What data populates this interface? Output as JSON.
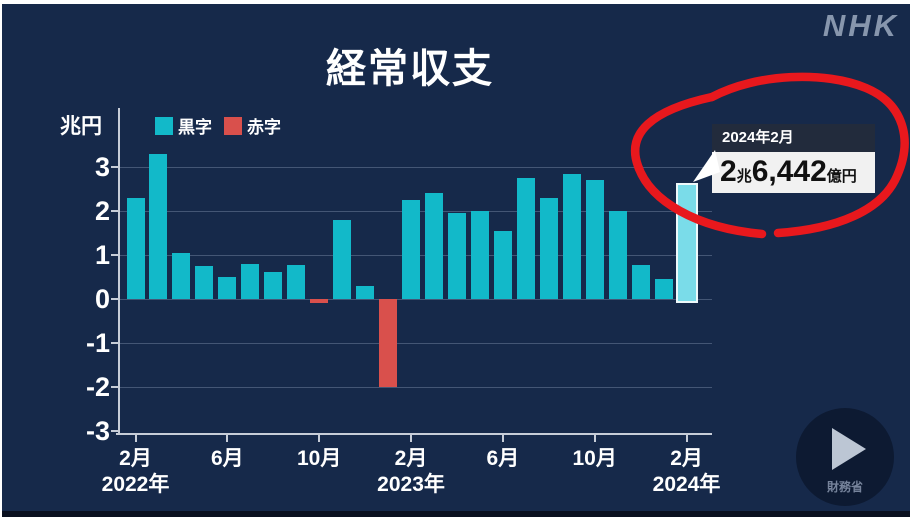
{
  "window": {
    "background": "#16294a"
  },
  "brand": {
    "logo_text": "NHK",
    "logo_color": "#8796ad"
  },
  "chart_data": {
    "type": "bar",
    "title": "経常収支",
    "y_axis_unit": "兆円",
    "legend": [
      {
        "label": "黒字",
        "color": "#12b9c9"
      },
      {
        "label": "赤字",
        "color": "#d9504c"
      }
    ],
    "legend_position": "top-left",
    "grid": "horizontal",
    "ylim": [
      -3,
      3
    ],
    "yticks": [
      3,
      2,
      1,
      0,
      -1,
      -2,
      -3
    ],
    "categories": [
      "2022-02",
      "2022-03",
      "2022-04",
      "2022-05",
      "2022-06",
      "2022-07",
      "2022-08",
      "2022-09",
      "2022-10",
      "2022-11",
      "2022-12",
      "2023-01",
      "2023-02",
      "2023-03",
      "2023-04",
      "2023-05",
      "2023-06",
      "2023-07",
      "2023-08",
      "2023-09",
      "2023-10",
      "2023-11",
      "2023-12",
      "2024-01",
      "2024-02"
    ],
    "values": [
      2.3,
      3.3,
      1.05,
      0.75,
      0.5,
      0.8,
      0.62,
      0.78,
      -0.08,
      1.8,
      0.3,
      -2.0,
      2.25,
      2.4,
      1.95,
      2.0,
      1.55,
      2.75,
      2.3,
      2.85,
      2.7,
      2.0,
      0.78,
      0.45,
      2.6442
    ],
    "x_tick_labels": [
      {
        "index": 0,
        "label": "2月"
      },
      {
        "index": 4,
        "label": "6月"
      },
      {
        "index": 8,
        "label": "10月"
      },
      {
        "index": 12,
        "label": "2月"
      },
      {
        "index": 16,
        "label": "6月"
      },
      {
        "index": 20,
        "label": "10月"
      },
      {
        "index": 24,
        "label": "2月"
      }
    ],
    "year_labels": [
      {
        "index": 0,
        "label": "2022年"
      },
      {
        "index": 12,
        "label": "2023年"
      },
      {
        "index": 24,
        "label": "2024年"
      }
    ],
    "positive_color": "#12b9c9",
    "negative_color": "#d9504c",
    "highlight": {
      "index": 24,
      "fill": "#7adce9",
      "border": "#eef9fb"
    }
  },
  "callout": {
    "date_label": "2024年2月",
    "value": {
      "num_cho": "2",
      "unit_cho": "兆",
      "num_oku": "6,442",
      "unit_oku": "億円"
    },
    "full_text": "2兆6,442億円"
  },
  "annotation": {
    "shape": "hand-drawn-ellipse",
    "color": "#e8181d"
  },
  "player": {
    "source_label": "財務省"
  }
}
